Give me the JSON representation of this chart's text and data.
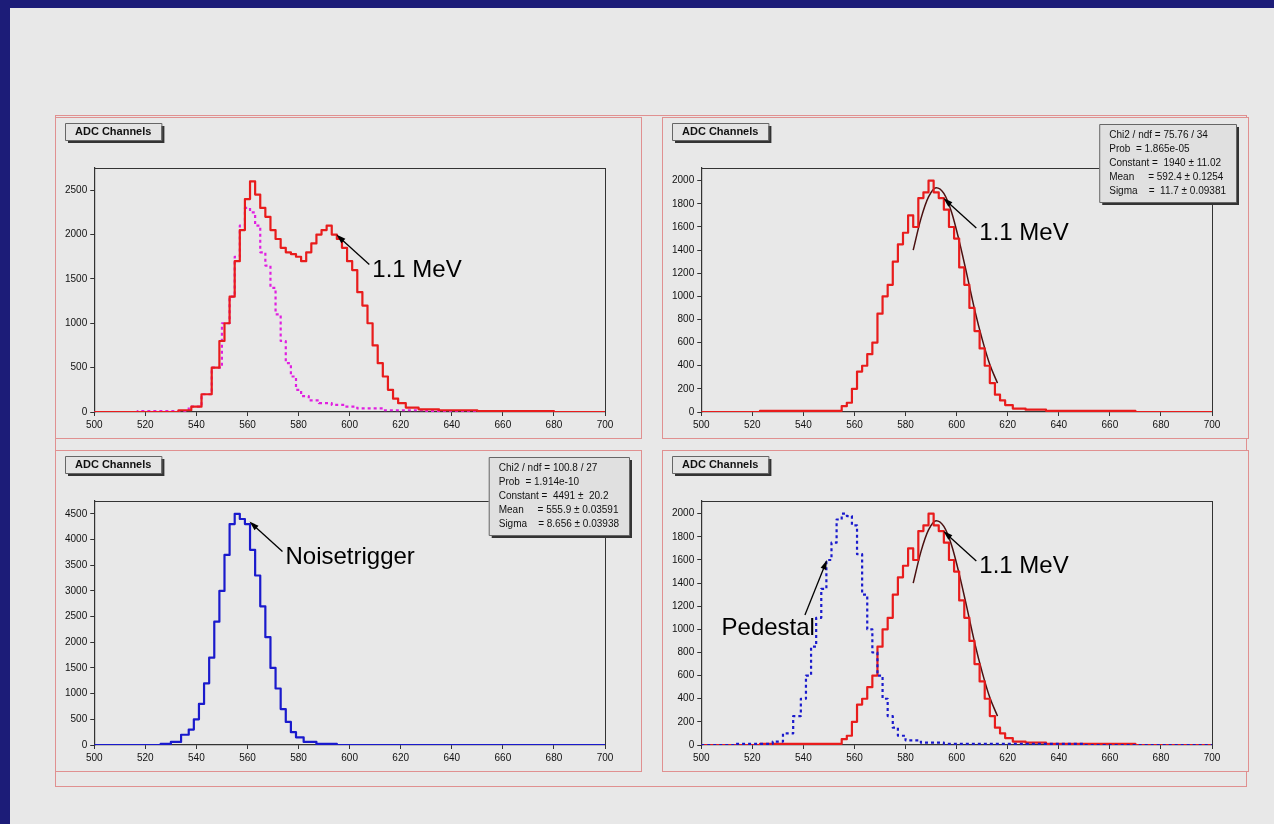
{
  "chart_data": [
    {
      "type": "step",
      "title": "ADC Channels",
      "xlim": [
        500,
        700
      ],
      "xticks": [
        500,
        520,
        540,
        560,
        580,
        600,
        620,
        640,
        660,
        680,
        700
      ],
      "ylim": [
        0,
        2750
      ],
      "yticks": [
        0,
        500,
        1000,
        1500,
        2000,
        2500
      ],
      "grid": false,
      "marker": "none",
      "series": [
        {
          "color": "#e81c1c",
          "line_style": "solid",
          "x": [
            500,
            530,
            536,
            540,
            544,
            548,
            550,
            552,
            554,
            556,
            558,
            560,
            562,
            564,
            566,
            568,
            570,
            572,
            574,
            576,
            578,
            580,
            582,
            584,
            586,
            588,
            590,
            592,
            594,
            596,
            598,
            600,
            602,
            604,
            606,
            608,
            610,
            612,
            614,
            616,
            618,
            620,
            624,
            630,
            640,
            660,
            700
          ],
          "values": [
            0,
            0,
            20,
            60,
            200,
            500,
            800,
            1000,
            1300,
            1700,
            2050,
            2400,
            2600,
            2450,
            2300,
            2200,
            2050,
            1950,
            1850,
            1800,
            1780,
            1750,
            1700,
            1800,
            1900,
            2000,
            2050,
            2100,
            2000,
            1950,
            1850,
            1700,
            1600,
            1350,
            1200,
            1000,
            750,
            550,
            400,
            250,
            150,
            100,
            50,
            30,
            20,
            10,
            0
          ]
        },
        {
          "color": "#e020e0",
          "line_style": "dotted",
          "x": [
            500,
            534,
            540,
            544,
            548,
            552,
            554,
            556,
            558,
            560,
            562,
            564,
            566,
            568,
            570,
            572,
            574,
            576,
            578,
            580,
            582,
            586,
            590,
            596,
            600,
            606,
            620,
            640,
            700
          ],
          "values": [
            0,
            10,
            60,
            200,
            500,
            1000,
            1300,
            1750,
            2100,
            2300,
            2250,
            2100,
            1800,
            1650,
            1400,
            1100,
            800,
            550,
            400,
            250,
            180,
            130,
            100,
            80,
            60,
            40,
            20,
            10,
            0
          ]
        }
      ],
      "annotations": [
        {
          "text": "1.1 MeV",
          "x": 594,
          "y": 2000
        }
      ]
    },
    {
      "type": "step",
      "title": "ADC Channels",
      "xlim": [
        500,
        700
      ],
      "xticks": [
        500,
        520,
        540,
        560,
        580,
        600,
        620,
        640,
        660,
        680,
        700
      ],
      "ylim": [
        0,
        2110
      ],
      "yticks": [
        0,
        200,
        400,
        600,
        800,
        1000,
        1200,
        1400,
        1600,
        1800,
        2000
      ],
      "grid": false,
      "marker": "none",
      "series": [
        {
          "color": "#e81c1c",
          "line_style": "solid",
          "x": [
            500,
            546,
            554,
            556,
            558,
            560,
            562,
            564,
            566,
            568,
            570,
            572,
            574,
            576,
            578,
            580,
            582,
            584,
            586,
            588,
            590,
            592,
            594,
            596,
            598,
            600,
            602,
            604,
            606,
            608,
            610,
            612,
            614,
            616,
            618,
            620,
            624,
            630,
            640,
            700
          ],
          "values": [
            0,
            10,
            10,
            50,
            80,
            200,
            350,
            400,
            500,
            600,
            850,
            1000,
            1100,
            1300,
            1450,
            1550,
            1700,
            1600,
            1850,
            1900,
            2000,
            1900,
            1850,
            1750,
            1600,
            1500,
            1250,
            1100,
            900,
            700,
            550,
            400,
            250,
            150,
            100,
            60,
            30,
            20,
            10,
            0
          ]
        },
        {
          "type": "line",
          "color": "#4a1010",
          "line_style": "solid",
          "x": [
            583,
            586,
            589,
            592,
            595,
            598,
            601,
            604,
            607,
            610,
            613,
            616
          ],
          "values": [
            1400,
            1670,
            1860,
            1940,
            1890,
            1730,
            1480,
            1190,
            890,
            630,
            410,
            250
          ]
        }
      ],
      "annotations": [
        "Chi2 / ndf = 75.76 / 34",
        "Prob  = 1.865e-05",
        "Constant =  1940 ± 11.02",
        "Mean     = 592.4 ± 0.1254",
        "Sigma    =  11.7 ± 0.09381",
        {
          "text": "1.1 MeV",
          "x": 594,
          "y": 1850
        }
      ]
    },
    {
      "type": "step",
      "title": "ADC Channels",
      "xlim": [
        500,
        700
      ],
      "xticks": [
        500,
        520,
        540,
        560,
        580,
        600,
        620,
        640,
        660,
        680,
        700
      ],
      "ylim": [
        0,
        4750
      ],
      "yticks": [
        0,
        500,
        1000,
        1500,
        2000,
        2500,
        3000,
        3500,
        4000,
        4500
      ],
      "grid": false,
      "marker": "none",
      "series": [
        {
          "color": "#1a1acc",
          "line_style": "solid",
          "x": [
            500,
            524,
            528,
            532,
            536,
            538,
            540,
            542,
            544,
            546,
            548,
            550,
            552,
            554,
            556,
            558,
            560,
            562,
            564,
            566,
            568,
            570,
            572,
            574,
            576,
            578,
            580,
            584,
            590,
            600,
            700
          ],
          "values": [
            0,
            0,
            20,
            60,
            200,
            300,
            500,
            800,
            1200,
            1700,
            2400,
            3000,
            3700,
            4300,
            4500,
            4400,
            4300,
            3800,
            3300,
            2700,
            2100,
            1500,
            1100,
            700,
            450,
            250,
            150,
            60,
            20,
            0,
            0
          ]
        }
      ],
      "annotations": [
        "Chi2 / ndf = 100.8 / 27",
        "Prob  = 1.914e-10",
        "Constant =  4491 ±  20.2",
        "Mean     = 555.9 ± 0.03591",
        "Sigma    = 8.656 ± 0.03938",
        {
          "text": "Noisetrigger",
          "x": 560,
          "y": 4350
        }
      ]
    },
    {
      "type": "step",
      "title": "ADC Channels",
      "xlim": [
        500,
        700
      ],
      "xticks": [
        500,
        520,
        540,
        560,
        580,
        600,
        620,
        640,
        660,
        680,
        700
      ],
      "ylim": [
        0,
        2110
      ],
      "yticks": [
        0,
        200,
        400,
        600,
        800,
        1000,
        1200,
        1400,
        1600,
        1800,
        2000
      ],
      "grid": false,
      "marker": "none",
      "series": [
        {
          "color": "#1a1acc",
          "line_style": "dotted",
          "x": [
            500,
            526,
            530,
            534,
            538,
            540,
            542,
            544,
            546,
            548,
            550,
            552,
            554,
            556,
            558,
            560,
            562,
            564,
            566,
            568,
            570,
            572,
            574,
            576,
            578,
            582,
            590,
            600,
            700
          ],
          "values": [
            0,
            10,
            30,
            100,
            250,
            400,
            600,
            850,
            1100,
            1350,
            1600,
            1750,
            1950,
            2000,
            1980,
            1900,
            1650,
            1300,
            1000,
            800,
            600,
            400,
            250,
            150,
            80,
            40,
            20,
            10,
            0
          ]
        },
        {
          "color": "#e81c1c",
          "line_style": "solid",
          "x": [
            500,
            546,
            554,
            556,
            558,
            560,
            562,
            564,
            566,
            568,
            570,
            572,
            574,
            576,
            578,
            580,
            582,
            584,
            586,
            588,
            590,
            592,
            594,
            596,
            598,
            600,
            602,
            604,
            606,
            608,
            610,
            612,
            614,
            616,
            618,
            620,
            624,
            630,
            640,
            700
          ],
          "values": [
            0,
            10,
            10,
            50,
            80,
            200,
            350,
            400,
            500,
            600,
            850,
            1000,
            1100,
            1300,
            1450,
            1550,
            1700,
            1600,
            1850,
            1900,
            2000,
            1900,
            1850,
            1750,
            1600,
            1500,
            1250,
            1100,
            900,
            700,
            550,
            400,
            250,
            150,
            100,
            60,
            30,
            20,
            10,
            0
          ]
        },
        {
          "type": "line",
          "color": "#4a1010",
          "line_style": "solid",
          "x": [
            583,
            586,
            589,
            592,
            595,
            598,
            601,
            604,
            607,
            610,
            613,
            616
          ],
          "values": [
            1400,
            1670,
            1860,
            1940,
            1890,
            1730,
            1480,
            1190,
            890,
            630,
            410,
            250
          ]
        }
      ],
      "annotations": [
        {
          "text": "Pedestal",
          "x": 550,
          "y": 1600
        },
        {
          "text": "1.1 MeV",
          "x": 594,
          "y": 1850
        }
      ]
    }
  ]
}
